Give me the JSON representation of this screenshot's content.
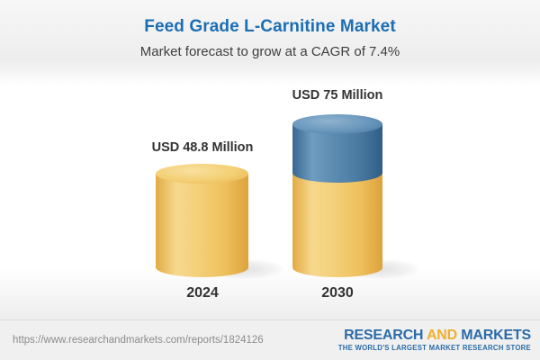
{
  "header": {
    "title": "Feed Grade L-Carnitine Market",
    "subtitle": "Market forecast to grow at a CAGR of 7.4%"
  },
  "chart_data": {
    "type": "bar",
    "style": "3d-cylinder-infographic",
    "title": "Feed Grade L-Carnitine Market",
    "subtitle": "Market forecast to grow at a CAGR of 7.4%",
    "cagr_percent": 7.4,
    "unit": "USD Million",
    "categories": [
      "2024",
      "2030"
    ],
    "values": [
      48.8,
      75
    ],
    "value_labels": [
      "USD 48.8 Million",
      "USD 75 Million"
    ],
    "bar_colors": [
      {
        "category": "2024",
        "segments": [
          {
            "color": "#f0c96a",
            "meaning": "market size"
          }
        ]
      },
      {
        "category": "2030",
        "segments": [
          {
            "color": "#f0c96a",
            "meaning": "base"
          },
          {
            "color": "#4b7ca6",
            "meaning": "top segment"
          }
        ]
      }
    ],
    "xlabel": "",
    "ylabel": "",
    "grid": false,
    "legend": false
  },
  "bars": [
    {
      "value_label": "USD 48.8 Million",
      "year": "2024"
    },
    {
      "value_label": "USD 75 Million",
      "year": "2030"
    }
  ],
  "footer": {
    "url": "https://www.researchandmarkets.com/reports/1824126",
    "logo": {
      "research": "RESEARCH",
      "and": "AND",
      "markets": "MARKETS",
      "tagline": "THE WORLD'S LARGEST MARKET RESEARCH STORE"
    }
  },
  "colors": {
    "title_blue": "#1c6eb4",
    "subtitle_gray": "#3f3f3f",
    "bar_yellow": "#f0c96a",
    "bar_blue": "#4b7ca6",
    "logo_blue": "#2b6ba8",
    "logo_gold": "#f0af2d",
    "footer_bg": "#f0f0f0"
  }
}
